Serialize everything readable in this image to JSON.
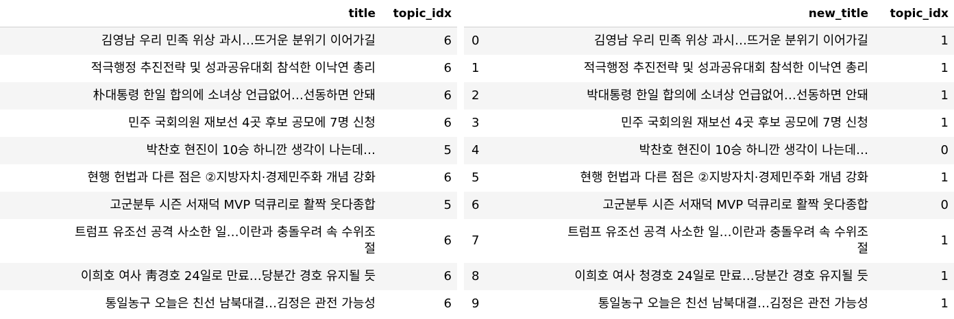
{
  "left_table": {
    "columns": [
      "title",
      "topic_idx"
    ],
    "rows": [
      {
        "title": "김영남 우리 민족 위상 과시…뜨거운 분위기 이어가길",
        "topic_idx": "6"
      },
      {
        "title": "적극행정 추진전략 및 성과공유대회 참석한 이낙연 총리",
        "topic_idx": "6"
      },
      {
        "title": "朴대통령 한일 합의에 소녀상 언급없어…선동하면 안돼",
        "topic_idx": "6"
      },
      {
        "title": "민주 국회의원 재보선 4곳 후보 공모에 7명 신청",
        "topic_idx": "6"
      },
      {
        "title": "박찬호 현진이 10승 하니깐 생각이 나는데…",
        "topic_idx": "5"
      },
      {
        "title": "현행 헌법과 다른 점은 ②지방자치·경제민주화 개념 강화",
        "topic_idx": "6"
      },
      {
        "title": "고군분투 시즌 서재덕 MVP 덕큐리로 활짝 웃다종합",
        "topic_idx": "5"
      },
      {
        "title_line1": "트럼프 유조선 공격 사소한 일…이란과 충돌우려 속 수위조",
        "title_line2": "절",
        "topic_idx": "6"
      },
      {
        "title": "이희호 여사 靑경호 24일로 만료…당분간 경호 유지될 듯",
        "topic_idx": "6"
      },
      {
        "title": "통일농구 오늘은 친선 남북대결…김정은 관전 가능성",
        "topic_idx": "6"
      }
    ]
  },
  "right_table": {
    "columns": [
      "",
      "new_title",
      "topic_idx"
    ],
    "rows": [
      {
        "index": "0",
        "new_title": "김영남 우리 민족 위상 과시…뜨거운 분위기 이어가길",
        "topic_idx": "1"
      },
      {
        "index": "1",
        "new_title": "적극행정 추진전략 및 성과공유대회 참석한 이낙연 총리",
        "topic_idx": "1"
      },
      {
        "index": "2",
        "new_title": "박대통령 한일 합의에 소녀상 언급없어…선동하면 안돼",
        "topic_idx": "1"
      },
      {
        "index": "3",
        "new_title": "민주 국회의원 재보선 4곳 후보 공모에 7명 신청",
        "topic_idx": "1"
      },
      {
        "index": "4",
        "new_title": "박찬호 현진이 10승 하니깐 생각이 나는데…",
        "topic_idx": "0"
      },
      {
        "index": "5",
        "new_title": "현행 헌법과 다른 점은 ②지방자치·경제민주화 개념 강화",
        "topic_idx": "1"
      },
      {
        "index": "6",
        "new_title": "고군분투 시즌 서재덕 MVP 덕큐리로 활짝 웃다종합",
        "topic_idx": "0"
      },
      {
        "index": "7",
        "new_title_line1": "트럼프 유조선 공격 사소한 일…이란과 충돌우려 속 수위조",
        "new_title_line2": "절",
        "topic_idx": "1"
      },
      {
        "index": "8",
        "new_title": "이희호 여사 청경호 24일로 만료…당분간 경호 유지될 듯",
        "topic_idx": "1"
      },
      {
        "index": "9",
        "new_title": "통일농구 오늘은 친선 남북대결…김정은 관전 가능성",
        "topic_idx": "1"
      }
    ]
  }
}
